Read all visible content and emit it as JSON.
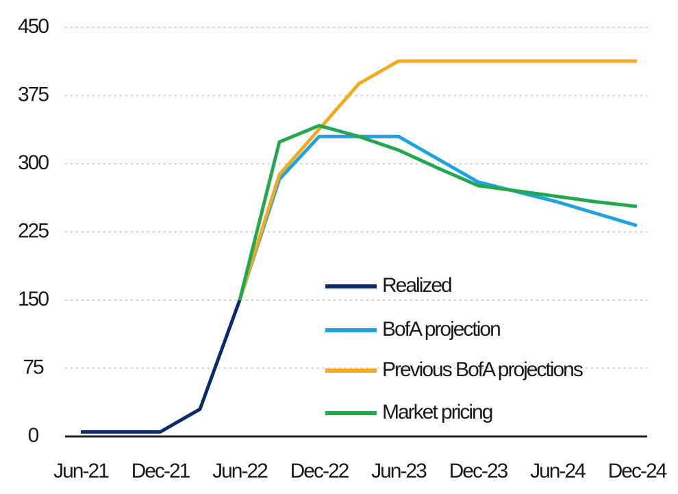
{
  "chart_data": {
    "type": "line",
    "categories": [
      "Jun-21",
      null,
      "Dec-21",
      null,
      "Jun-22",
      null,
      "Dec-22",
      null,
      "Jun-23",
      null,
      "Dec-23",
      null,
      "Jun-24",
      null,
      "Dec-24"
    ],
    "series": [
      {
        "name": "Realized",
        "color": "#0d2a6b",
        "values": [
          5,
          5,
          5,
          30,
          150,
          null,
          null,
          null,
          null,
          null,
          null,
          null,
          null,
          null,
          null
        ]
      },
      {
        "name": "BofA projection",
        "color": "#1fa3e0",
        "values": [
          null,
          null,
          null,
          null,
          150,
          283,
          330,
          330,
          330,
          305,
          280,
          269,
          258,
          245,
          232
        ]
      },
      {
        "name": "Previous BofA projections",
        "color": "#f0ab1f",
        "values": [
          null,
          null,
          null,
          null,
          150,
          288,
          338,
          388,
          413,
          413,
          413,
          413,
          413,
          413,
          413
        ]
      },
      {
        "name": "Market pricing",
        "color": "#23a850",
        "values": [
          null,
          null,
          null,
          null,
          150,
          324,
          342,
          330,
          315,
          295,
          276,
          270,
          264,
          258,
          253
        ]
      }
    ],
    "ylim": [
      0,
      450
    ],
    "yticks": [
      0,
      75,
      150,
      225,
      300,
      375,
      450
    ],
    "grid": true,
    "legend": "lower right"
  }
}
